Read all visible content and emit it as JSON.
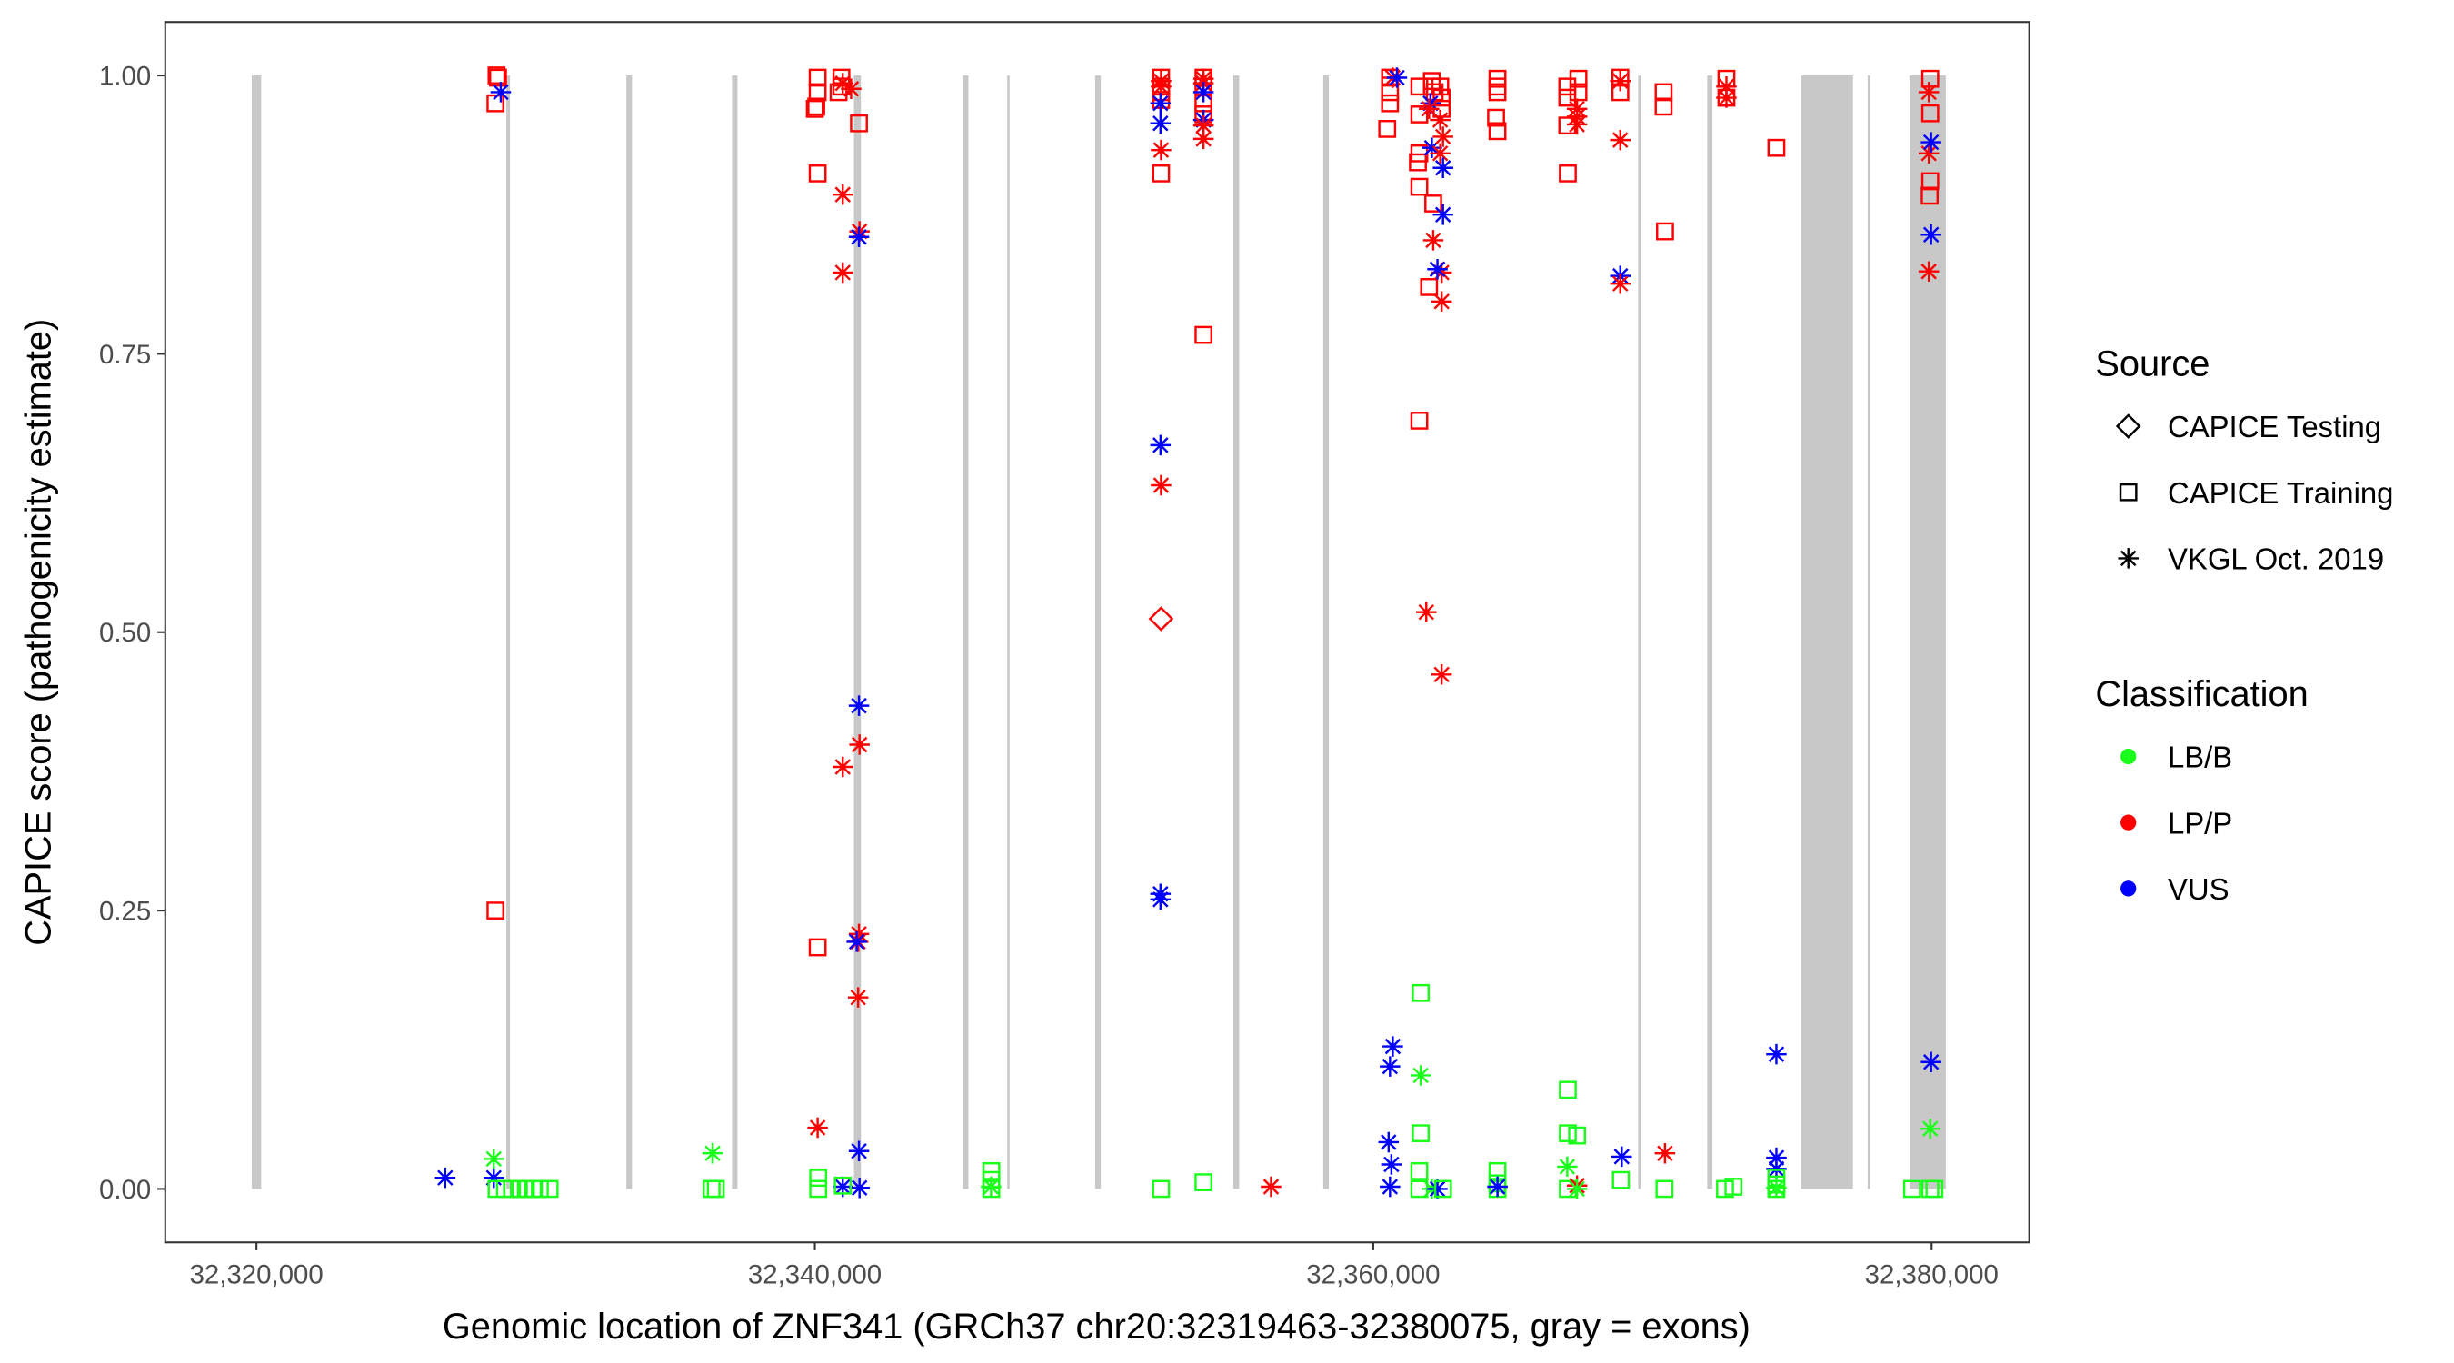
{
  "chart_data": {
    "type": "scatter",
    "xlabel": "Genomic location of ZNF341 (GRCh37 chr20:32319463-32380075, gray = exons)",
    "ylabel": "CAPICE score (pathogenicity estimate)",
    "xlim": [
      32316732,
      32383496
    ],
    "ylim": [
      -0.048,
      1.048
    ],
    "x_ticks": [
      32320000,
      32340000,
      32360000,
      32380000
    ],
    "x_tick_labels": [
      "32,320,000",
      "32,340,000",
      "32,360,000",
      "32,380,000"
    ],
    "y_ticks": [
      0,
      0.25,
      0.5,
      0.75,
      1.0
    ],
    "y_tick_labels": [
      "0.00",
      "0.25",
      "0.50",
      "0.75",
      "1.00"
    ],
    "grid": false,
    "legend_placement": "right",
    "legend": {
      "source_title": "Source",
      "sources": [
        {
          "key": "testing",
          "label": "CAPICE Testing",
          "shape": "diamond"
        },
        {
          "key": "training",
          "label": "CAPICE Training",
          "shape": "square"
        },
        {
          "key": "vkgl",
          "label": "VKGL Oct. 2019",
          "shape": "asterisk"
        }
      ],
      "class_title": "Classification",
      "classes": [
        {
          "key": "LB/B",
          "label": "LB/B",
          "color": "#1aff1a"
        },
        {
          "key": "LP/P",
          "label": "LP/P",
          "color": "#ff0000"
        },
        {
          "key": "VUS",
          "label": "VUS",
          "color": "#0000ff"
        }
      ]
    },
    "exon_color": "#c8c8c8",
    "exons": [
      [
        32319831,
        32320169
      ],
      [
        32328950,
        32329080
      ],
      [
        32333250,
        32333450
      ],
      [
        32337030,
        32337230
      ],
      [
        32341400,
        32341650
      ],
      [
        32345300,
        32345500
      ],
      [
        32346890,
        32346970
      ],
      [
        32350040,
        32350240
      ],
      [
        32354990,
        32355200
      ],
      [
        32358210,
        32358410
      ],
      [
        32369490,
        32369550
      ],
      [
        32371960,
        32372150
      ],
      [
        32375324,
        32377183
      ],
      [
        32377710,
        32377780
      ],
      [
        32379211,
        32380507
      ]
    ],
    "points": [
      [
        32328600,
        1.0,
        "training",
        "LP/P"
      ],
      [
        32328650,
        0.998,
        "training",
        "LP/P"
      ],
      [
        32328560,
        0.975,
        "training",
        "LP/P"
      ],
      [
        32328750,
        0.985,
        "vkgl",
        "VUS"
      ],
      [
        32328560,
        0.25,
        "training",
        "LP/P"
      ],
      [
        32326760,
        0.01,
        "vkgl",
        "VUS"
      ],
      [
        32328500,
        0.01,
        "vkgl",
        "VUS"
      ],
      [
        32328500,
        0.027,
        "vkgl",
        "LB/B"
      ],
      [
        32328600,
        0,
        "training",
        "LB/B"
      ],
      [
        32328900,
        0,
        "training",
        "LB/B"
      ],
      [
        32329150,
        0,
        "training",
        "LB/B"
      ],
      [
        32329400,
        0,
        "training",
        "LB/B"
      ],
      [
        32329650,
        0,
        "training",
        "LB/B"
      ],
      [
        32329900,
        0,
        "training",
        "LB/B"
      ],
      [
        32330150,
        0,
        "training",
        "LB/B"
      ],
      [
        32330500,
        0,
        "training",
        "LB/B"
      ],
      [
        32336340,
        0.032,
        "vkgl",
        "LB/B"
      ],
      [
        32336300,
        0,
        "training",
        "LB/B"
      ],
      [
        32336450,
        0,
        "training",
        "LB/B"
      ],
      [
        32340100,
        0.998,
        "training",
        "LP/P"
      ],
      [
        32340100,
        0.985,
        "training",
        "LP/P"
      ],
      [
        32340050,
        0.972,
        "training",
        "LP/P"
      ],
      [
        32340000,
        0.97,
        "training",
        "LP/P"
      ],
      [
        32340100,
        0.912,
        "training",
        "LP/P"
      ],
      [
        32340100,
        0.217,
        "training",
        "LP/P"
      ],
      [
        32340120,
        0.01,
        "training",
        "LB/B"
      ],
      [
        32340120,
        0,
        "training",
        "LB/B"
      ],
      [
        32340100,
        0.055,
        "vkgl",
        "LP/P"
      ],
      [
        32340950,
        0.998,
        "training",
        "LP/P"
      ],
      [
        32340950,
        0.99,
        "training",
        "LP/P"
      ],
      [
        32340850,
        0.985,
        "training",
        "LP/P"
      ],
      [
        32341000,
        0.993,
        "vkgl",
        "LP/P"
      ],
      [
        32341300,
        0.988,
        "vkgl",
        "LP/P"
      ],
      [
        32341580,
        0.957,
        "training",
        "LP/P"
      ],
      [
        32341000,
        0.893,
        "vkgl",
        "LP/P"
      ],
      [
        32341600,
        0.86,
        "vkgl",
        "LP/P"
      ],
      [
        32341580,
        0.855,
        "vkgl",
        "VUS"
      ],
      [
        32341000,
        0.823,
        "vkgl",
        "LP/P"
      ],
      [
        32341580,
        0.434,
        "vkgl",
        "VUS"
      ],
      [
        32341600,
        0.399,
        "vkgl",
        "LP/P"
      ],
      [
        32341000,
        0.379,
        "vkgl",
        "LP/P"
      ],
      [
        32341580,
        0.229,
        "vkgl",
        "LP/P"
      ],
      [
        32341550,
        0.222,
        "vkgl",
        "LP/P"
      ],
      [
        32341500,
        0.222,
        "vkgl",
        "VUS"
      ],
      [
        32341550,
        0.172,
        "vkgl",
        "LP/P"
      ],
      [
        32341580,
        0.034,
        "vkgl",
        "VUS"
      ],
      [
        32341000,
        0.002,
        "vkgl",
        "VUS"
      ],
      [
        32341600,
        0.001,
        "vkgl",
        "VUS"
      ],
      [
        32341000,
        0.003,
        "training",
        "LB/B"
      ],
      [
        32346320,
        0.016,
        "training",
        "LB/B"
      ],
      [
        32346320,
        0.008,
        "training",
        "LB/B"
      ],
      [
        32346320,
        0,
        "training",
        "LB/B"
      ],
      [
        32346310,
        0.002,
        "vkgl",
        "LB/B"
      ],
      [
        32352400,
        0.998,
        "training",
        "LP/P"
      ],
      [
        32352400,
        0.99,
        "training",
        "LP/P"
      ],
      [
        32352400,
        0.985,
        "training",
        "LP/P"
      ],
      [
        32352400,
        0.978,
        "training",
        "LP/P"
      ],
      [
        32352400,
        0.995,
        "vkgl",
        "LP/P"
      ],
      [
        32352400,
        0.99,
        "vkgl",
        "LP/P"
      ],
      [
        32352380,
        0.975,
        "vkgl",
        "VUS"
      ],
      [
        32352380,
        0.957,
        "vkgl",
        "VUS"
      ],
      [
        32352400,
        0.933,
        "vkgl",
        "LP/P"
      ],
      [
        32352400,
        0.912,
        "training",
        "LP/P"
      ],
      [
        32352380,
        0.668,
        "vkgl",
        "VUS"
      ],
      [
        32352400,
        0.632,
        "vkgl",
        "LP/P"
      ],
      [
        32352400,
        0.512,
        "testing",
        "LP/P"
      ],
      [
        32352380,
        0.265,
        "vkgl",
        "VUS"
      ],
      [
        32352380,
        0.26,
        "vkgl",
        "VUS"
      ],
      [
        32352400,
        0,
        "training",
        "LB/B"
      ],
      [
        32353920,
        0.998,
        "training",
        "LP/P"
      ],
      [
        32353920,
        0.99,
        "training",
        "LP/P"
      ],
      [
        32353920,
        0.975,
        "training",
        "LP/P"
      ],
      [
        32353920,
        0.965,
        "training",
        "LP/P"
      ],
      [
        32353920,
        0.997,
        "vkgl",
        "LP/P"
      ],
      [
        32353920,
        0.993,
        "vkgl",
        "LP/P"
      ],
      [
        32353920,
        0.985,
        "vkgl",
        "VUS"
      ],
      [
        32353920,
        0.96,
        "vkgl",
        "VUS"
      ],
      [
        32353920,
        0.955,
        "vkgl",
        "LP/P"
      ],
      [
        32353920,
        0.943,
        "vkgl",
        "LP/P"
      ],
      [
        32353920,
        0.767,
        "training",
        "LP/P"
      ],
      [
        32353920,
        0.006,
        "training",
        "LB/B"
      ],
      [
        32356340,
        0.002,
        "vkgl",
        "LP/P"
      ],
      [
        32360600,
        0.998,
        "training",
        "LP/P"
      ],
      [
        32360600,
        0.985,
        "training",
        "LP/P"
      ],
      [
        32360600,
        0.975,
        "training",
        "LP/P"
      ],
      [
        32360500,
        0.952,
        "training",
        "LP/P"
      ],
      [
        32360700,
        0.998,
        "vkgl",
        "LP/P"
      ],
      [
        32360850,
        0.998,
        "vkgl",
        "VUS"
      ],
      [
        32360700,
        0.128,
        "vkgl",
        "VUS"
      ],
      [
        32360600,
        0.11,
        "vkgl",
        "VUS"
      ],
      [
        32360550,
        0.042,
        "vkgl",
        "VUS"
      ],
      [
        32360650,
        0.022,
        "vkgl",
        "VUS"
      ],
      [
        32360600,
        0.002,
        "vkgl",
        "VUS"
      ],
      [
        32361650,
        0.99,
        "training",
        "LP/P"
      ],
      [
        32361650,
        0.965,
        "training",
        "LP/P"
      ],
      [
        32361650,
        0.93,
        "training",
        "LP/P"
      ],
      [
        32361600,
        0.922,
        "training",
        "LP/P"
      ],
      [
        32361650,
        0.9,
        "training",
        "LP/P"
      ],
      [
        32361650,
        0.69,
        "training",
        "LP/P"
      ],
      [
        32362000,
        0.81,
        "training",
        "LP/P"
      ],
      [
        32361700,
        0.176,
        "training",
        "LB/B"
      ],
      [
        32361700,
        0.05,
        "training",
        "LB/B"
      ],
      [
        32361650,
        0.016,
        "training",
        "LB/B"
      ],
      [
        32361650,
        0,
        "training",
        "LB/B"
      ],
      [
        32361700,
        0.102,
        "vkgl",
        "LB/B"
      ],
      [
        32361900,
        0.518,
        "vkgl",
        "LP/P"
      ],
      [
        32362100,
        0.995,
        "training",
        "LP/P"
      ],
      [
        32362100,
        0.99,
        "training",
        "LP/P"
      ],
      [
        32362200,
        0.985,
        "training",
        "LP/P"
      ],
      [
        32362150,
        0.885,
        "training",
        "LP/P"
      ],
      [
        32362400,
        0.99,
        "training",
        "LP/P"
      ],
      [
        32362450,
        0.98,
        "training",
        "LP/P"
      ],
      [
        32362450,
        0.97,
        "training",
        "LP/P"
      ],
      [
        32362050,
        0.975,
        "vkgl",
        "VUS"
      ],
      [
        32362100,
        0.935,
        "vkgl",
        "VUS"
      ],
      [
        32362000,
        0.97,
        "vkgl",
        "LP/P"
      ],
      [
        32362400,
        0.96,
        "vkgl",
        "LP/P"
      ],
      [
        32362500,
        0.945,
        "vkgl",
        "LP/P"
      ],
      [
        32362400,
        0.93,
        "vkgl",
        "LP/P"
      ],
      [
        32362150,
        0.852,
        "vkgl",
        "LP/P"
      ],
      [
        32362450,
        0.823,
        "vkgl",
        "LP/P"
      ],
      [
        32362450,
        0.797,
        "vkgl",
        "LP/P"
      ],
      [
        32362450,
        0.462,
        "vkgl",
        "LP/P"
      ],
      [
        32362500,
        0.917,
        "vkgl",
        "VUS"
      ],
      [
        32362500,
        0.875,
        "vkgl",
        "VUS"
      ],
      [
        32362300,
        0.826,
        "vkgl",
        "VUS"
      ],
      [
        32362100,
        0,
        "vkgl",
        "LB/B"
      ],
      [
        32362300,
        0,
        "vkgl",
        "VUS"
      ],
      [
        32362500,
        0,
        "training",
        "LB/B"
      ],
      [
        32364450,
        0.997,
        "training",
        "LP/P"
      ],
      [
        32364450,
        0.99,
        "training",
        "LP/P"
      ],
      [
        32364450,
        0.985,
        "training",
        "LP/P"
      ],
      [
        32364400,
        0.962,
        "training",
        "LP/P"
      ],
      [
        32364450,
        0.95,
        "training",
        "LP/P"
      ],
      [
        32364450,
        0.016,
        "training",
        "LB/B"
      ],
      [
        32364450,
        0.005,
        "training",
        "LB/B"
      ],
      [
        32364450,
        0,
        "training",
        "LB/B"
      ],
      [
        32364450,
        0.002,
        "vkgl",
        "LB/B"
      ],
      [
        32364450,
        0.002,
        "vkgl",
        "VUS"
      ],
      [
        32366950,
        0.99,
        "training",
        "LP/P"
      ],
      [
        32366950,
        0.98,
        "training",
        "LP/P"
      ],
      [
        32366950,
        0.955,
        "training",
        "LP/P"
      ],
      [
        32366970,
        0.912,
        "training",
        "LP/P"
      ],
      [
        32367350,
        0.997,
        "training",
        "LP/P"
      ],
      [
        32367350,
        0.985,
        "training",
        "LP/P"
      ],
      [
        32367300,
        0.97,
        "vkgl",
        "LP/P"
      ],
      [
        32367300,
        0.963,
        "vkgl",
        "LP/P"
      ],
      [
        32367300,
        0.956,
        "vkgl",
        "LP/P"
      ],
      [
        32366970,
        0.089,
        "training",
        "LB/B"
      ],
      [
        32366970,
        0.05,
        "training",
        "LB/B"
      ],
      [
        32367300,
        0.048,
        "training",
        "LB/B"
      ],
      [
        32366950,
        0.02,
        "vkgl",
        "LB/B"
      ],
      [
        32366970,
        0,
        "training",
        "LB/B"
      ],
      [
        32367300,
        0.003,
        "vkgl",
        "LP/P"
      ],
      [
        32367300,
        0,
        "vkgl",
        "LB/B"
      ],
      [
        32368850,
        0.998,
        "training",
        "LP/P"
      ],
      [
        32368850,
        0.985,
        "training",
        "LP/P"
      ],
      [
        32368850,
        0.995,
        "vkgl",
        "LP/P"
      ],
      [
        32368850,
        0.942,
        "vkgl",
        "LP/P"
      ],
      [
        32368850,
        0.82,
        "vkgl",
        "VUS"
      ],
      [
        32368850,
        0.813,
        "vkgl",
        "LP/P"
      ],
      [
        32368900,
        0.029,
        "vkgl",
        "VUS"
      ],
      [
        32368870,
        0.008,
        "training",
        "LB/B"
      ],
      [
        32370400,
        0.985,
        "training",
        "LP/P"
      ],
      [
        32370400,
        0.972,
        "training",
        "LP/P"
      ],
      [
        32370450,
        0.86,
        "training",
        "LP/P"
      ],
      [
        32370450,
        0.032,
        "vkgl",
        "LP/P"
      ],
      [
        32370430,
        0,
        "training",
        "LB/B"
      ],
      [
        32372650,
        0.997,
        "training",
        "LP/P"
      ],
      [
        32372650,
        0.98,
        "training",
        "LP/P"
      ],
      [
        32372650,
        0.99,
        "vkgl",
        "LP/P"
      ],
      [
        32372650,
        0.98,
        "vkgl",
        "LP/P"
      ],
      [
        32372600,
        0,
        "training",
        "LB/B"
      ],
      [
        32372900,
        0.002,
        "training",
        "LB/B"
      ],
      [
        32374440,
        0.935,
        "training",
        "LP/P"
      ],
      [
        32374440,
        0.121,
        "vkgl",
        "VUS"
      ],
      [
        32374440,
        0.028,
        "vkgl",
        "VUS"
      ],
      [
        32374440,
        0.018,
        "vkgl",
        "VUS"
      ],
      [
        32374440,
        0.01,
        "training",
        "LB/B"
      ],
      [
        32374440,
        0.004,
        "training",
        "LB/B"
      ],
      [
        32374440,
        0,
        "training",
        "LB/B"
      ],
      [
        32374440,
        0.001,
        "vkgl",
        "LB/B"
      ],
      [
        32379950,
        0.997,
        "training",
        "LP/P"
      ],
      [
        32379950,
        0.966,
        "training",
        "LP/P"
      ],
      [
        32379950,
        0.905,
        "training",
        "LP/P"
      ],
      [
        32379930,
        0.892,
        "training",
        "LP/P"
      ],
      [
        32379900,
        0.985,
        "vkgl",
        "LP/P"
      ],
      [
        32379900,
        0.93,
        "vkgl",
        "LP/P"
      ],
      [
        32379900,
        0.824,
        "vkgl",
        "LP/P"
      ],
      [
        32379980,
        0.94,
        "vkgl",
        "VUS"
      ],
      [
        32379980,
        0.857,
        "vkgl",
        "VUS"
      ],
      [
        32379980,
        0.114,
        "vkgl",
        "VUS"
      ],
      [
        32379950,
        0.054,
        "vkgl",
        "LB/B"
      ],
      [
        32379300,
        0,
        "training",
        "LB/B"
      ],
      [
        32379950,
        0,
        "training",
        "LB/B"
      ],
      [
        32380100,
        0,
        "training",
        "LB/B"
      ]
    ]
  }
}
